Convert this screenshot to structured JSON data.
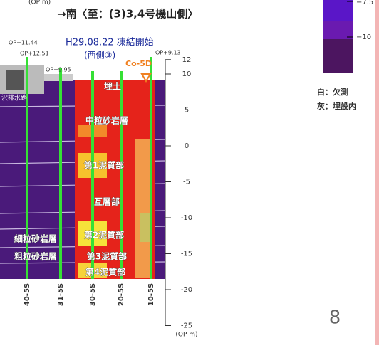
{
  "header": {
    "unit_top": "(OP m)",
    "direction": "→南〈至：(3)3,4号機山側〉"
  },
  "annotations": {
    "freeze_start": "H29.08.22 凍結開始",
    "side": "(西側③)",
    "well": "Co-5D",
    "op_levels": [
      "OP+11.44",
      "OP+12.51",
      "OP+9.95",
      "OP+9.13"
    ],
    "drain": "沢排水路"
  },
  "layers": [
    "埋土",
    "中粒砂岩層",
    "第1泥質部",
    "互層部",
    "第2泥質部",
    "第3泥質部",
    "第4泥質部",
    "細粒砂岩層",
    "粗粒砂岩層"
  ],
  "depth_axis": {
    "ticks": [
      12,
      10,
      5,
      0,
      -5,
      -10,
      -15,
      -20,
      -25
    ],
    "unit": "(OP m)"
  },
  "boreholes": [
    "40-5S",
    "31-5S",
    "30-5S",
    "20-5S",
    "10-5S"
  ],
  "legend": {
    "scale_labels": [
      "−7.5",
      "−10"
    ],
    "notes": [
      "白：欠測",
      "灰：埋設内"
    ]
  },
  "page_number": "8"
}
